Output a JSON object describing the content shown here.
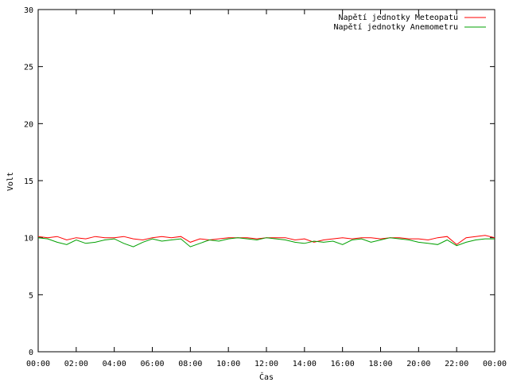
{
  "chart_data": {
    "type": "line",
    "title": "",
    "xlabel": "Čas",
    "ylabel": "Volt",
    "ylim": [
      0,
      30
    ],
    "yticks": [
      0,
      5,
      10,
      15,
      20,
      25,
      30
    ],
    "xlim": [
      "00:00",
      "24:00"
    ],
    "xtick_labels": [
      "00:00",
      "02:00",
      "04:00",
      "06:00",
      "08:00",
      "10:00",
      "12:00",
      "14:00",
      "16:00",
      "18:00",
      "20:00",
      "22:00",
      "00:00"
    ],
    "grid": false,
    "legend_position": "top-right",
    "x": [
      "00:00",
      "00:30",
      "01:00",
      "01:30",
      "02:00",
      "02:30",
      "03:00",
      "03:30",
      "04:00",
      "04:30",
      "05:00",
      "05:30",
      "06:00",
      "06:30",
      "07:00",
      "07:30",
      "08:00",
      "08:30",
      "09:00",
      "09:30",
      "10:00",
      "10:30",
      "11:00",
      "11:30",
      "12:00",
      "12:30",
      "13:00",
      "13:30",
      "14:00",
      "14:30",
      "15:00",
      "15:30",
      "16:00",
      "16:30",
      "17:00",
      "17:30",
      "18:00",
      "18:30",
      "19:00",
      "19:30",
      "20:00",
      "20:30",
      "21:00",
      "21:30",
      "22:00",
      "22:30",
      "23:00",
      "23:30",
      "24:00"
    ],
    "series": [
      {
        "name": "Napětí jednotky Meteopatu",
        "color": "#ff0000",
        "values": [
          10.1,
          10.0,
          10.1,
          9.8,
          10.0,
          9.9,
          10.1,
          10.0,
          10.0,
          10.1,
          9.9,
          9.8,
          10.0,
          10.1,
          10.0,
          10.1,
          9.6,
          9.9,
          9.8,
          9.9,
          10.0,
          10.0,
          10.0,
          9.9,
          10.0,
          10.0,
          10.0,
          9.8,
          9.9,
          9.6,
          9.8,
          9.9,
          10.0,
          9.9,
          10.0,
          10.0,
          9.9,
          10.0,
          10.0,
          9.9,
          9.9,
          9.8,
          10.0,
          10.1,
          9.4,
          10.0,
          10.1,
          10.2,
          10.0
        ]
      },
      {
        "name": "Napětí jednotky Anemometru",
        "color": "#00a000",
        "values": [
          10.0,
          9.9,
          9.6,
          9.4,
          9.8,
          9.5,
          9.6,
          9.8,
          9.9,
          9.5,
          9.2,
          9.6,
          9.9,
          9.7,
          9.8,
          9.9,
          9.2,
          9.5,
          9.8,
          9.7,
          9.9,
          10.0,
          9.9,
          9.8,
          10.0,
          9.9,
          9.8,
          9.6,
          9.5,
          9.7,
          9.6,
          9.7,
          9.4,
          9.8,
          9.9,
          9.6,
          9.8,
          10.0,
          9.9,
          9.8,
          9.6,
          9.5,
          9.4,
          9.8,
          9.3,
          9.6,
          9.8,
          9.9,
          9.9
        ]
      }
    ]
  }
}
